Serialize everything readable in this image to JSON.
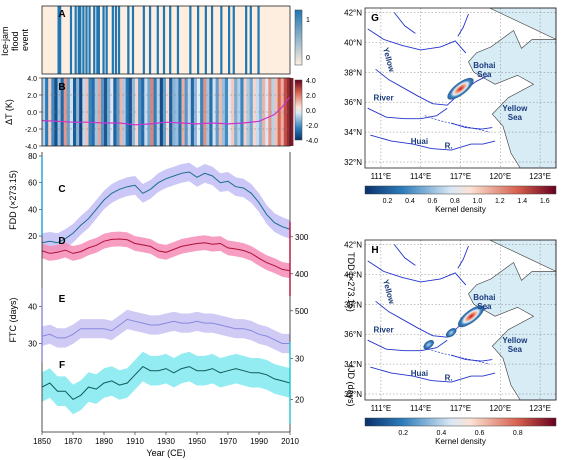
{
  "chart_data": [
    {
      "panel": "A",
      "type": "heatmap",
      "ylabel": "Ice-jam flood event",
      "colorbar_ticks": [
        "1",
        "0"
      ],
      "colors": {
        "event": "#1f77b4",
        "no_event": "#fdeee0"
      },
      "event_years": [
        1860,
        1861,
        1868,
        1871,
        1873,
        1874,
        1876,
        1878,
        1880,
        1883,
        1885,
        1886,
        1889,
        1891,
        1895,
        1897,
        1899,
        1905,
        1908,
        1915,
        1919,
        1924,
        1928,
        1932,
        1937,
        1945,
        1950,
        1955,
        1959,
        1965,
        1970,
        1973,
        1981,
        1984,
        1989
      ]
    },
    {
      "panel": "B",
      "type": "line",
      "ylabel": "ΔT (K)",
      "ylim": [
        -4,
        4
      ],
      "yticks": [
        "4.0",
        "2.0",
        "0.0",
        "-2.0",
        "-4.0"
      ],
      "colorbar_ticks": [
        "4.0",
        "2.0",
        "0.0",
        "-2.0",
        "-4.0"
      ],
      "stripes_years_step": 2,
      "stripes": [
        -0.6,
        -2.1,
        0.4,
        -1.8,
        -3.2,
        -0.9,
        -2.6,
        1.2,
        -1.4,
        -0.3,
        -2.9,
        -1.1,
        -3.5,
        -0.5,
        0.6,
        -1.9,
        -2.4,
        -0.8,
        1.0,
        -1.6,
        -3.0,
        -1.2,
        -0.2,
        -2.7,
        -1.5,
        0.8,
        -0.7,
        -2.2,
        -3.1,
        -1.0,
        0.3,
        -1.7,
        -2.5,
        -0.4,
        -1.3,
        1.5,
        -2.0,
        -0.6,
        -3.3,
        -1.4,
        0.2,
        -2.8,
        -1.1,
        -0.9,
        -2.3,
        0.9,
        -1.6,
        -0.5,
        -2.6,
        -1.0,
        -0.1,
        -1.9,
        1.3,
        -0.8,
        -2.4,
        -0.3,
        -1.5,
        0.7,
        -0.9,
        -1.8,
        -0.2,
        0.5,
        -1.2,
        -0.6,
        -1.9,
        0.4,
        -0.7,
        -1.3,
        0.3,
        -0.4,
        -1.1,
        0.8,
        -0.2,
        1.2,
        -0.6,
        0.6,
        1.9,
        0.9,
        2.4,
        3.1,
        3.5
      ],
      "series": [
        {
          "x": [
            1850,
            1860,
            1870,
            1880,
            1890,
            1900,
            1910,
            1920,
            1930,
            1940,
            1950,
            1960,
            1970,
            1980,
            1990,
            2000,
            2005,
            2010
          ],
          "y": [
            -1.0,
            -1.1,
            -1.2,
            -1.2,
            -1.3,
            -1.3,
            -1.5,
            -1.4,
            -1.2,
            -1.3,
            -1.4,
            -1.3,
            -1.4,
            -1.3,
            -1.1,
            -0.3,
            0.6,
            1.8
          ]
        }
      ],
      "line_color": "#cc33cc"
    },
    {
      "panel": "C",
      "type": "line",
      "ylabel": "FDD (×273.15)",
      "axis": "left",
      "ylim": [
        20,
        80
      ],
      "yticks": [
        "20",
        "40",
        "60",
        "80"
      ],
      "x": [
        1850,
        1855,
        1860,
        1865,
        1870,
        1875,
        1880,
        1885,
        1890,
        1895,
        1900,
        1905,
        1910,
        1915,
        1920,
        1925,
        1930,
        1935,
        1940,
        1945,
        1950,
        1955,
        1960,
        1965,
        1970,
        1975,
        1980,
        1985,
        1990,
        1995,
        2000,
        2005,
        2010
      ],
      "y": [
        15,
        16,
        15,
        18,
        22,
        28,
        33,
        40,
        47,
        52,
        55,
        57,
        58,
        52,
        55,
        60,
        63,
        65,
        67,
        68,
        64,
        67,
        65,
        60,
        61,
        57,
        56,
        52,
        45,
        36,
        30,
        27,
        25
      ],
      "band": 7,
      "color": "#1a6f8f",
      "band_color": "#c2bdf5"
    },
    {
      "panel": "D",
      "type": "line",
      "ylabel": "TDD (×273.15)",
      "axis": "right",
      "ylim": [
        200,
        500
      ],
      "yticks": [
        "300",
        "400",
        "500"
      ],
      "inverted": true,
      "x": [
        1850,
        1855,
        1860,
        1865,
        1870,
        1875,
        1880,
        1885,
        1890,
        1895,
        1900,
        1905,
        1910,
        1915,
        1920,
        1925,
        1930,
        1935,
        1940,
        1945,
        1950,
        1955,
        1960,
        1965,
        1970,
        1975,
        1980,
        1985,
        1990,
        1995,
        2000,
        2005,
        2010
      ],
      "y": [
        338,
        345,
        342,
        336,
        345,
        340,
        330,
        323,
        312,
        307,
        306,
        308,
        318,
        322,
        326,
        338,
        342,
        334,
        326,
        322,
        318,
        316,
        320,
        318,
        330,
        333,
        337,
        345,
        358,
        370,
        378,
        388,
        392
      ],
      "band": 20,
      "color": "#b0103a",
      "band_color": "#f48cb6"
    },
    {
      "panel": "E",
      "type": "line",
      "ylabel": "FTC (days)",
      "axis": "left",
      "ylim": [
        25,
        45
      ],
      "yticks": [
        "30",
        "40"
      ],
      "x": [
        1850,
        1855,
        1860,
        1865,
        1870,
        1875,
        1880,
        1885,
        1890,
        1895,
        1900,
        1905,
        1910,
        1915,
        1920,
        1925,
        1930,
        1935,
        1940,
        1945,
        1950,
        1955,
        1960,
        1965,
        1970,
        1975,
        1980,
        1985,
        1990,
        1995,
        2000,
        2005,
        2010
      ],
      "y": [
        32,
        32.5,
        31.5,
        31.5,
        32.5,
        34,
        34,
        34,
        34,
        33.5,
        35,
        36.5,
        36,
        35.5,
        35,
        35,
        35.5,
        36,
        35.5,
        35.5,
        36,
        35.5,
        35.5,
        35,
        34.5,
        34,
        34,
        33.5,
        32.5,
        32,
        31,
        30,
        30
      ],
      "band": 2.6,
      "color": "#8888e0",
      "band_color": "#c8c2f2"
    },
    {
      "panel": "F",
      "type": "line",
      "ylabel": "IJD (days)",
      "axis": "right",
      "ylim": [
        15,
        35
      ],
      "yticks": [
        "20",
        "30"
      ],
      "x": [
        1850,
        1855,
        1860,
        1865,
        1870,
        1875,
        1880,
        1885,
        1890,
        1895,
        1900,
        1905,
        1910,
        1915,
        1920,
        1925,
        1930,
        1935,
        1940,
        1945,
        1950,
        1955,
        1960,
        1965,
        1970,
        1975,
        1980,
        1985,
        1990,
        1995,
        2000,
        2005,
        2010
      ],
      "y": [
        23,
        24,
        22,
        22,
        20,
        21,
        23,
        22.5,
        24,
        24.5,
        23.5,
        24,
        26,
        28,
        27,
        27,
        27.5,
        26.5,
        27.5,
        28,
        27,
        27,
        27.5,
        26.5,
        27,
        27.5,
        27,
        26.5,
        26.5,
        26,
        25,
        24.5,
        24
      ],
      "band": 3.6,
      "color": "#0f5a5a",
      "band_color": "#7fe9ee"
    },
    {
      "panel": "G",
      "type": "heatmap",
      "colorbar_label": "Kernel density",
      "colorbar_ticks": [
        "0.2",
        "0.4",
        "0.6",
        "0.8",
        "1.0",
        "1.2",
        "1.4",
        "1.6"
      ],
      "hotspots": [
        {
          "lon": 117.0,
          "lat": 36.9,
          "value": 1.6
        }
      ],
      "xticks": [
        "111°E",
        "114°E",
        "117°E",
        "120°E",
        "123°E"
      ],
      "yticks": [
        "42°N",
        "40°N",
        "38°N",
        "36°N",
        "34°N",
        "32°N"
      ],
      "labels": [
        "Yellow",
        "Bohai Sea",
        "River",
        "Yellow Sea",
        "Huai",
        "R."
      ]
    },
    {
      "panel": "H",
      "type": "heatmap",
      "colorbar_label": "Kernel density",
      "colorbar_ticks": [
        "0.2",
        "0.4",
        "0.6",
        "0.8"
      ],
      "hotspots": [
        {
          "lon": 117.8,
          "lat": 37.2,
          "value": 0.95
        },
        {
          "lon": 116.3,
          "lat": 36.1,
          "value": 0.3
        },
        {
          "lon": 114.6,
          "lat": 35.3,
          "value": 0.25
        }
      ],
      "xticks": [
        "111°E",
        "114°E",
        "117°E",
        "120°E",
        "123°E"
      ],
      "yticks": [
        "42°N",
        "40°N",
        "38°N",
        "36°N",
        "34°N",
        "32°N"
      ],
      "labels": [
        "Yellow",
        "Bohai Sea",
        "River",
        "Yellow Sea",
        "Huai",
        "R."
      ]
    }
  ],
  "shared_x": {
    "label": "Year (CE)",
    "ticks": [
      "1850",
      "1870",
      "1890",
      "1910",
      "1930",
      "1950",
      "1970",
      "1990",
      "2010"
    ],
    "range": [
      1850,
      2010
    ]
  },
  "panel_letters": [
    "A",
    "B",
    "C",
    "D",
    "E",
    "F",
    "G",
    "H"
  ]
}
